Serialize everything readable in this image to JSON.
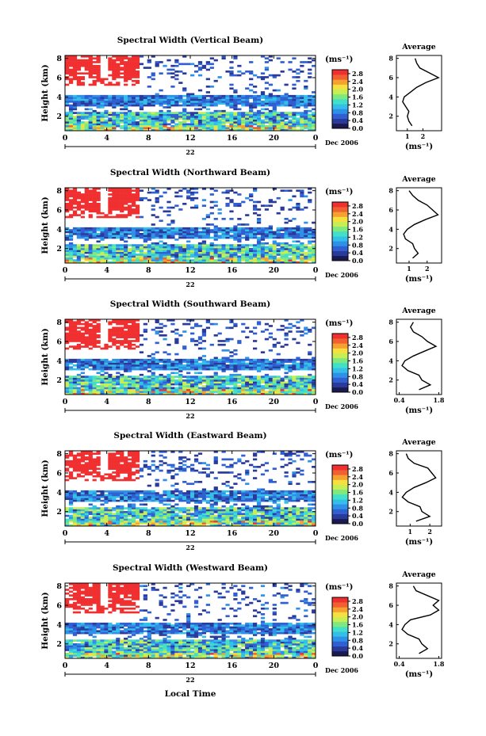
{
  "chart_data": [
    {
      "type": "heatmap",
      "title": "Spectral Width (Vertical Beam)",
      "ylabel": "Height (km)",
      "yticks": [
        "2",
        "4",
        "6",
        "8"
      ],
      "xticks": [
        "0",
        "4",
        "8",
        "12",
        "16",
        "20",
        "0"
      ],
      "date_label": "22",
      "month_label": "Dec 2006",
      "ylim": [
        0.5,
        8.3
      ],
      "xlim": [
        0,
        24
      ],
      "colorbar": {
        "unit": "(ms⁻¹)",
        "ticks": [
          "0.0",
          "0.4",
          "0.8",
          "1.2",
          "1.6",
          "2.0",
          "2.4",
          "2.8"
        ],
        "range": [
          0,
          3.0
        ]
      },
      "profile": {
        "title": "Average",
        "xlabel": "(ms⁻¹)",
        "xticks": [
          "1",
          "2"
        ],
        "xlim": [
          0.3,
          3.2
        ],
        "yticks": [
          "2",
          "4",
          "6",
          "8"
        ],
        "height_km": [
          1.0,
          1.5,
          2.0,
          2.5,
          3.0,
          3.5,
          4.0,
          4.5,
          5.0,
          5.5,
          6.0,
          6.5,
          7.0,
          7.5,
          8.0
        ],
        "width": [
          1.3,
          1.1,
          1.0,
          1.1,
          0.9,
          0.7,
          0.8,
          1.2,
          1.6,
          2.2,
          3.0,
          2.4,
          1.8,
          1.6,
          1.5
        ]
      }
    },
    {
      "type": "heatmap",
      "title": "Spectral Width (Northward Beam)",
      "ylabel": "Height (km)",
      "yticks": [
        "2",
        "4",
        "6",
        "8"
      ],
      "xticks": [
        "0",
        "4",
        "8",
        "12",
        "16",
        "20",
        "0"
      ],
      "date_label": "22",
      "month_label": "Dec 2006",
      "ylim": [
        0.5,
        8.3
      ],
      "xlim": [
        0,
        24
      ],
      "colorbar": {
        "unit": "(ms⁻¹)",
        "ticks": [
          "0.0",
          "0.4",
          "0.8",
          "1.2",
          "1.6",
          "2.0",
          "2.4",
          "2.8"
        ],
        "range": [
          0,
          3.0
        ]
      },
      "profile": {
        "title": "Average",
        "xlabel": "(ms⁻¹)",
        "xticks": [
          "1",
          "2"
        ],
        "xlim": [
          0.3,
          2.8
        ],
        "yticks": [
          "2",
          "4",
          "6",
          "8"
        ],
        "height_km": [
          1.0,
          1.5,
          2.0,
          2.5,
          3.0,
          3.5,
          4.0,
          4.5,
          5.0,
          5.5,
          6.0,
          6.5,
          7.0,
          7.5,
          8.0
        ],
        "width": [
          1.2,
          1.5,
          1.3,
          1.2,
          0.8,
          0.7,
          0.9,
          1.3,
          1.9,
          2.6,
          2.3,
          2.0,
          1.5,
          1.2,
          1.0
        ]
      }
    },
    {
      "type": "heatmap",
      "title": "Spectral Width (Southward Beam)",
      "ylabel": "Height (km)",
      "yticks": [
        "2",
        "4",
        "6",
        "8"
      ],
      "xticks": [
        "0",
        "4",
        "8",
        "12",
        "16",
        "20",
        "0"
      ],
      "date_label": "22",
      "month_label": "Dec 2006",
      "ylim": [
        0.5,
        8.3
      ],
      "xlim": [
        0,
        24
      ],
      "colorbar": {
        "unit": "(ms⁻¹)",
        "ticks": [
          "0.0",
          "0.4",
          "0.8",
          "1.2",
          "1.6",
          "2.0",
          "2.4",
          "2.8"
        ],
        "range": [
          0,
          3.0
        ]
      },
      "profile": {
        "title": "Average",
        "xlabel": "(ms⁻¹)",
        "xticks": [
          "0.4",
          "1.8"
        ],
        "xlim": [
          0.3,
          1.9
        ],
        "yticks": [
          "2",
          "4",
          "6",
          "8"
        ],
        "height_km": [
          1.0,
          1.5,
          2.0,
          2.5,
          3.0,
          3.5,
          4.0,
          4.5,
          5.0,
          5.5,
          6.0,
          6.5,
          7.0,
          7.5,
          8.0
        ],
        "width": [
          1.1,
          1.5,
          1.2,
          1.1,
          0.7,
          0.5,
          0.6,
          0.9,
          1.3,
          1.7,
          1.4,
          1.2,
          0.9,
          0.8,
          0.9
        ]
      }
    },
    {
      "type": "heatmap",
      "title": "Spectral Width (Eastward Beam)",
      "ylabel": "Height (km)",
      "yticks": [
        "2",
        "4",
        "6",
        "8"
      ],
      "xticks": [
        "0",
        "4",
        "8",
        "12",
        "16",
        "20",
        "0"
      ],
      "date_label": "22",
      "month_label": "Dec 2006",
      "ylim": [
        0.5,
        8.3
      ],
      "xlim": [
        0,
        24
      ],
      "colorbar": {
        "unit": "(ms⁻¹)",
        "ticks": [
          "0.0",
          "0.4",
          "0.8",
          "1.2",
          "1.6",
          "2.0",
          "2.4",
          "2.8"
        ],
        "range": [
          0,
          3.0
        ]
      },
      "profile": {
        "title": "Average",
        "xlabel": "(ms⁻¹)",
        "xticks": [
          "1",
          "2"
        ],
        "xlim": [
          0.3,
          2.6
        ],
        "yticks": [
          "2",
          "4",
          "6",
          "8"
        ],
        "height_km": [
          1.0,
          1.5,
          2.0,
          2.5,
          3.0,
          3.5,
          4.0,
          4.5,
          5.0,
          5.5,
          6.0,
          6.5,
          7.0,
          7.5,
          8.0
        ],
        "width": [
          1.3,
          2.0,
          1.6,
          1.5,
          0.9,
          0.6,
          0.8,
          1.2,
          1.8,
          2.3,
          2.1,
          1.9,
          1.2,
          0.9,
          0.8
        ]
      }
    },
    {
      "type": "heatmap",
      "title": "Spectral Width (Westward Beam)",
      "ylabel": "Height (km)",
      "yticks": [
        "2",
        "4",
        "6",
        "8"
      ],
      "xticks": [
        "0",
        "4",
        "8",
        "12",
        "16",
        "20",
        "0"
      ],
      "date_label": "22",
      "month_label": "Dec 2006",
      "ylim": [
        0.5,
        8.3
      ],
      "xlim": [
        0,
        24
      ],
      "colorbar": {
        "unit": "(ms⁻¹)",
        "ticks": [
          "0.0",
          "0.4",
          "0.8",
          "1.2",
          "1.6",
          "2.0",
          "2.4",
          "2.8"
        ],
        "range": [
          0,
          3.0
        ]
      },
      "profile": {
        "title": "Average",
        "xlabel": "(ms⁻¹)",
        "xticks": [
          "0.4",
          "1.8"
        ],
        "xlim": [
          0.3,
          1.9
        ],
        "yticks": [
          "2",
          "4",
          "6",
          "8"
        ],
        "height_km": [
          1.0,
          1.5,
          2.0,
          2.5,
          3.0,
          3.5,
          4.0,
          4.5,
          5.0,
          5.5,
          6.0,
          6.5,
          7.0,
          7.5,
          8.0
        ],
        "width": [
          1.1,
          1.4,
          1.2,
          1.1,
          0.7,
          0.5,
          0.6,
          0.8,
          1.5,
          1.8,
          1.6,
          1.8,
          1.4,
          1.0,
          0.9
        ]
      }
    }
  ],
  "xlabel": "Local Time",
  "colors": {
    "colormap": [
      "#1a1a50",
      "#2a3a9a",
      "#2f5fd0",
      "#2f90e8",
      "#33bfe8",
      "#42e0c8",
      "#7fe87f",
      "#c8ee55",
      "#f5e040",
      "#f5a030",
      "#f06030",
      "#f03030"
    ]
  }
}
